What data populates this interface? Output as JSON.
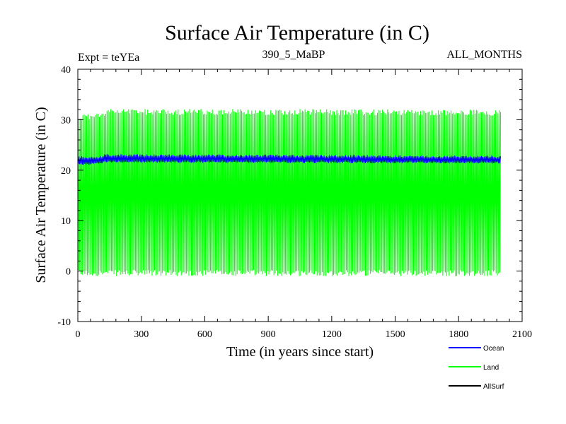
{
  "chart_data": {
    "type": "line",
    "title": "Surface Air Temperature (in C)",
    "subtitle_left": "Expt = teYEa",
    "subtitle_center": "390_5_MaBP",
    "subtitle_right": "ALL_MONTHS",
    "xlabel": "Time (in years since start)",
    "ylabel": "Surface Air Temperature (in C)",
    "xlim": [
      0,
      2100
    ],
    "ylim": [
      -10,
      40
    ],
    "x_ticks": [
      0,
      300,
      600,
      900,
      1200,
      1500,
      1800,
      2100
    ],
    "y_ticks": [
      -10,
      0,
      10,
      20,
      30,
      40
    ],
    "x_tick_labels": [
      "0",
      "300",
      "600",
      "900",
      "1200",
      "1500",
      "1800",
      "2100"
    ],
    "y_tick_labels": [
      "-10",
      "0",
      "10",
      "20",
      "30",
      "40"
    ],
    "legend_position": "bottom-right",
    "series": [
      {
        "name": "Ocean",
        "color": "#0000ff",
        "x_range": [
          0,
          2000
        ],
        "envelope": {
          "x": [
            0,
            100,
            130,
            2000
          ],
          "min": [
            21.0,
            21.2,
            21.5,
            21.3
          ],
          "max": [
            22.8,
            22.8,
            23.2,
            22.9
          ]
        }
      },
      {
        "name": "Land",
        "color": "#00ff00",
        "x_range": [
          0,
          2000
        ],
        "envelope": {
          "x": [
            0,
            100,
            150,
            2000
          ],
          "min": [
            -1.0,
            -1.0,
            -1.0,
            -1.0
          ],
          "max": [
            31.0,
            31.5,
            32.2,
            32.0
          ]
        }
      },
      {
        "name": "AllSurf",
        "color": "#000000",
        "x_range": [
          0,
          2000
        ],
        "envelope": null
      }
    ]
  }
}
